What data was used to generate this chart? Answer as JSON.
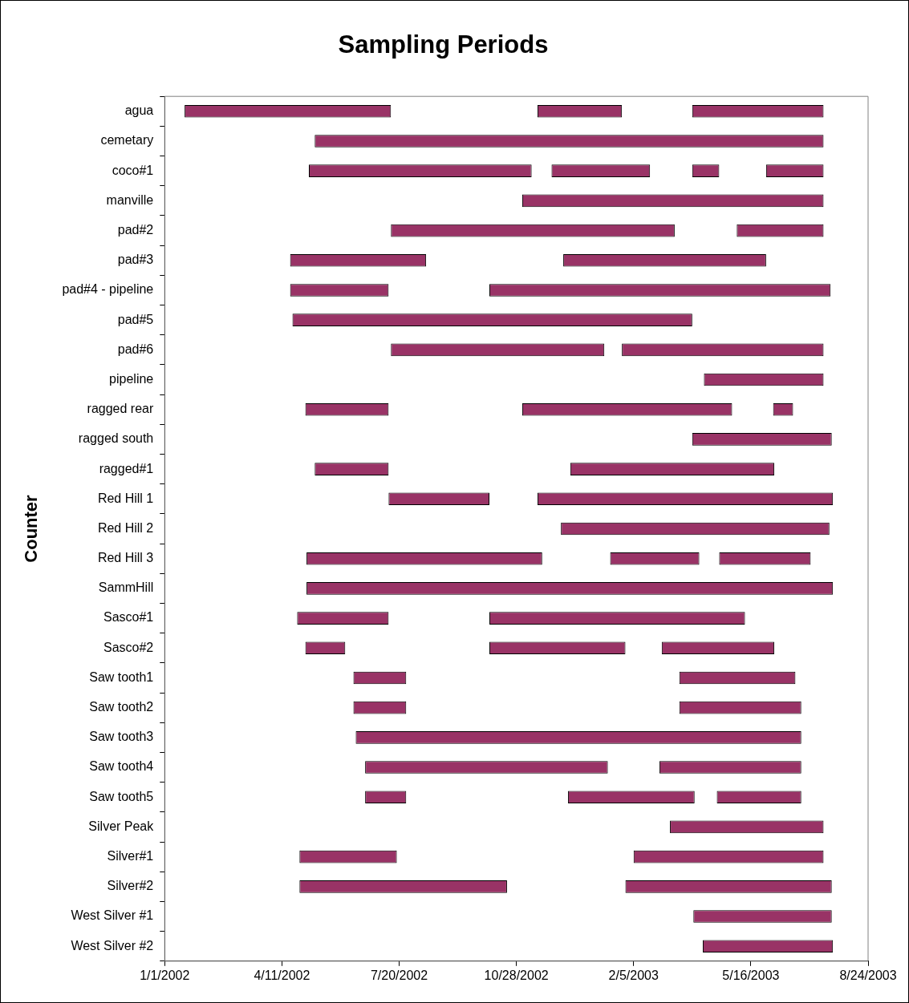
{
  "chart_data": {
    "type": "bar",
    "orientation": "horizontal",
    "title": "Sampling Periods",
    "ylabel": "Counter",
    "categories": [
      "agua",
      "cemetary",
      "coco#1",
      "manville",
      "pad#2",
      "pad#3",
      "pad#4 - pipeline",
      "pad#5",
      "pad#6",
      "pipeline",
      "ragged rear",
      "ragged south",
      "ragged#1",
      "Red Hill 1",
      "Red Hill 2",
      "Red Hill 3",
      "SammHill",
      "Sasco#1",
      "Sasco#2",
      "Saw tooth1",
      "Saw tooth2",
      "Saw tooth3",
      "Saw tooth4",
      "Saw tooth5",
      "Silver Peak",
      "Silver#1",
      "Silver#2",
      "West Silver #1",
      "West Silver #2"
    ],
    "series": [
      {
        "color": "#993366",
        "base": [
          11705,
          11816,
          11811,
          11993,
          11881,
          11795,
          11795,
          11797,
          11881,
          12148,
          11808,
          12138,
          11816,
          11879,
          12026,
          11809,
          11809,
          11801,
          11808,
          11849,
          11849,
          11851,
          11859,
          11859,
          12119,
          11803,
          11803,
          12139,
          12147
        ],
        "values": [
          176,
          434,
          190,
          257,
          242,
          116,
          84,
          341,
          182,
          102,
          71,
          119,
          63,
          86,
          229,
          201,
          449,
          78,
          34,
          45,
          45,
          380,
          207,
          35,
          131,
          83,
          177,
          118,
          111
        ]
      },
      {
        "color": "#993366",
        "base": [
          12006,
          null,
          12018,
          null,
          12176,
          12028,
          11965,
          null,
          12078,
          null,
          11993,
          null,
          12034,
          12006,
          null,
          12068,
          null,
          11965,
          11965,
          12127,
          12127,
          null,
          12110,
          12032,
          null,
          12088,
          12081,
          null,
          null
        ],
        "values": [
          72,
          null,
          84,
          null,
          74,
          173,
          291,
          null,
          172,
          null,
          179,
          null,
          174,
          252,
          null,
          76,
          null,
          218,
          116,
          99,
          104,
          null,
          121,
          108,
          null,
          162,
          176,
          null,
          null
        ]
      },
      {
        "color": "#993366",
        "base": [
          12138,
          null,
          12138,
          null,
          null,
          null,
          null,
          null,
          null,
          null,
          12207,
          null,
          null,
          null,
          null,
          12161,
          null,
          null,
          12112,
          null,
          null,
          null,
          null,
          12159,
          null,
          null,
          null,
          null,
          null
        ],
        "values": [
          112,
          null,
          23,
          null,
          null,
          null,
          null,
          null,
          null,
          null,
          17,
          null,
          null,
          null,
          null,
          78,
          null,
          null,
          96,
          null,
          null,
          null,
          null,
          72,
          null,
          null,
          null,
          null,
          null
        ]
      },
      {
        "color": "#993366",
        "base": [
          null,
          null,
          12201,
          null,
          null,
          null,
          null,
          null,
          null,
          null,
          null,
          null,
          null,
          null,
          null,
          null,
          null,
          null,
          null,
          null,
          null,
          null,
          null,
          null,
          null,
          null,
          null,
          null,
          null
        ],
        "values": [
          null,
          null,
          49,
          null,
          null,
          null,
          null,
          null,
          null,
          null,
          null,
          null,
          null,
          null,
          null,
          null,
          null,
          null,
          null,
          null,
          null,
          null,
          null,
          null,
          null,
          null,
          null,
          null,
          null
        ]
      }
    ],
    "xlim": [
      "2002-01-01",
      "2003-08-24"
    ],
    "xticks": [
      {
        "value": "2002-01-01",
        "label": "1/1/2002"
      },
      {
        "value": "2002-04-11",
        "label": "4/11/2002"
      },
      {
        "value": "2002-07-20",
        "label": "7/20/2002"
      },
      {
        "value": "2002-10-28",
        "label": "10/28/2002"
      },
      {
        "value": "2003-02-05",
        "label": "2/5/2003"
      },
      {
        "value": "2003-05-16",
        "label": "5/16/2003"
      },
      {
        "value": "2003-08-24",
        "label": "8/24/2003"
      }
    ],
    "grid": false,
    "legend": false
  }
}
